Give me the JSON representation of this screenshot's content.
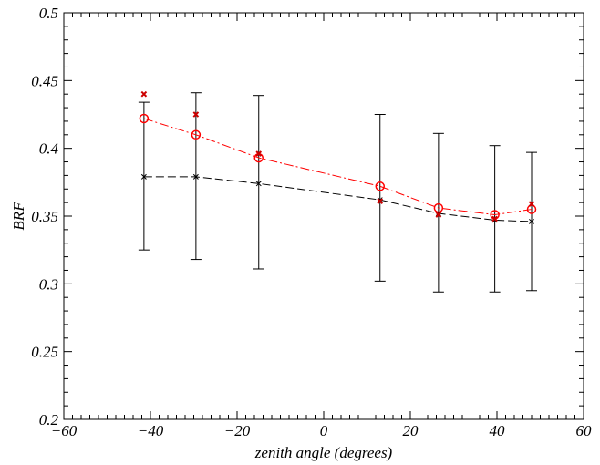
{
  "chart_data": {
    "type": "line",
    "title": "",
    "xlabel": "zenith angle (degrees)",
    "ylabel": "BRF",
    "xlim": [
      -60,
      60
    ],
    "ylim": [
      0.2,
      0.5
    ],
    "x_ticks": [
      -60,
      -40,
      -20,
      0,
      20,
      40,
      60
    ],
    "x_tick_labels": [
      "−60",
      "−40",
      "−20",
      "0",
      "20",
      "40",
      "60"
    ],
    "y_ticks": [
      0.2,
      0.25,
      0.3,
      0.35,
      0.4,
      0.45,
      0.5
    ],
    "y_tick_labels": [
      "0.2",
      "0.25",
      "0.3",
      "0.35",
      "0.4",
      "0.45",
      "0.5"
    ],
    "grid": false,
    "legend": "none",
    "series": [
      {
        "color": "#000000",
        "linestyle": "dashed",
        "marker": "x",
        "x": [
          -41.5,
          -29.5,
          -15,
          13,
          26.5,
          39.5,
          48
        ],
        "y": [
          0.379,
          0.379,
          0.374,
          0.362,
          0.352,
          0.347,
          0.346
        ],
        "error_low": [
          0.325,
          0.318,
          0.311,
          0.302,
          0.294,
          0.294,
          0.295
        ],
        "error_high": [
          0.434,
          0.441,
          0.439,
          0.425,
          0.411,
          0.402,
          0.397
        ]
      },
      {
        "color": "#ff0000",
        "linestyle": "dash-dot",
        "marker": "circle",
        "x": [
          -41.5,
          -29.5,
          -15,
          13,
          26.5,
          39.5,
          48
        ],
        "y": [
          0.422,
          0.41,
          0.393,
          0.372,
          0.356,
          0.351,
          0.355
        ]
      },
      {
        "color": "#cc0000",
        "linestyle": "none",
        "marker": "x",
        "x": [
          -41.5,
          -29.5,
          -15,
          13,
          26.5,
          39.5,
          48
        ],
        "y": [
          0.44,
          0.425,
          0.396,
          0.361,
          0.351,
          0.348,
          0.359
        ]
      }
    ]
  }
}
